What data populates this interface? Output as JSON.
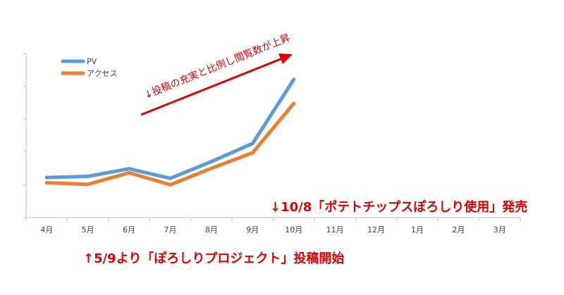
{
  "chart_data": {
    "type": "line",
    "categories": [
      "4月",
      "5月",
      "6月",
      "7月",
      "8月",
      "9月",
      "10月",
      "11月",
      "12月",
      "1月",
      "2月",
      "3月"
    ],
    "series": [
      {
        "name": "PV",
        "color": "#5b9bd5",
        "values": [
          0.2,
          0.23,
          0.42,
          0.18,
          0.6,
          1.05,
          2.65,
          null,
          null,
          null,
          null,
          null
        ]
      },
      {
        "name": "アクセス",
        "color": "#ed7d31",
        "values": [
          0.07,
          0.03,
          0.32,
          0.02,
          0.43,
          0.82,
          2.05,
          null,
          null,
          null,
          null,
          null
        ]
      }
    ],
    "ylim": [
      -0.8,
      3.3
    ],
    "grid": false,
    "legend_position": "top-left",
    "annotations": {
      "trend": "↓投稿の充実と比例し閲覧数が上昇",
      "october": "↓10/8「ポテトチップスぽろしり使用」発売",
      "may": "↑5/9より「ぽろしりプロジェクト」投稿開始"
    },
    "annotation_color": "#e00000"
  }
}
